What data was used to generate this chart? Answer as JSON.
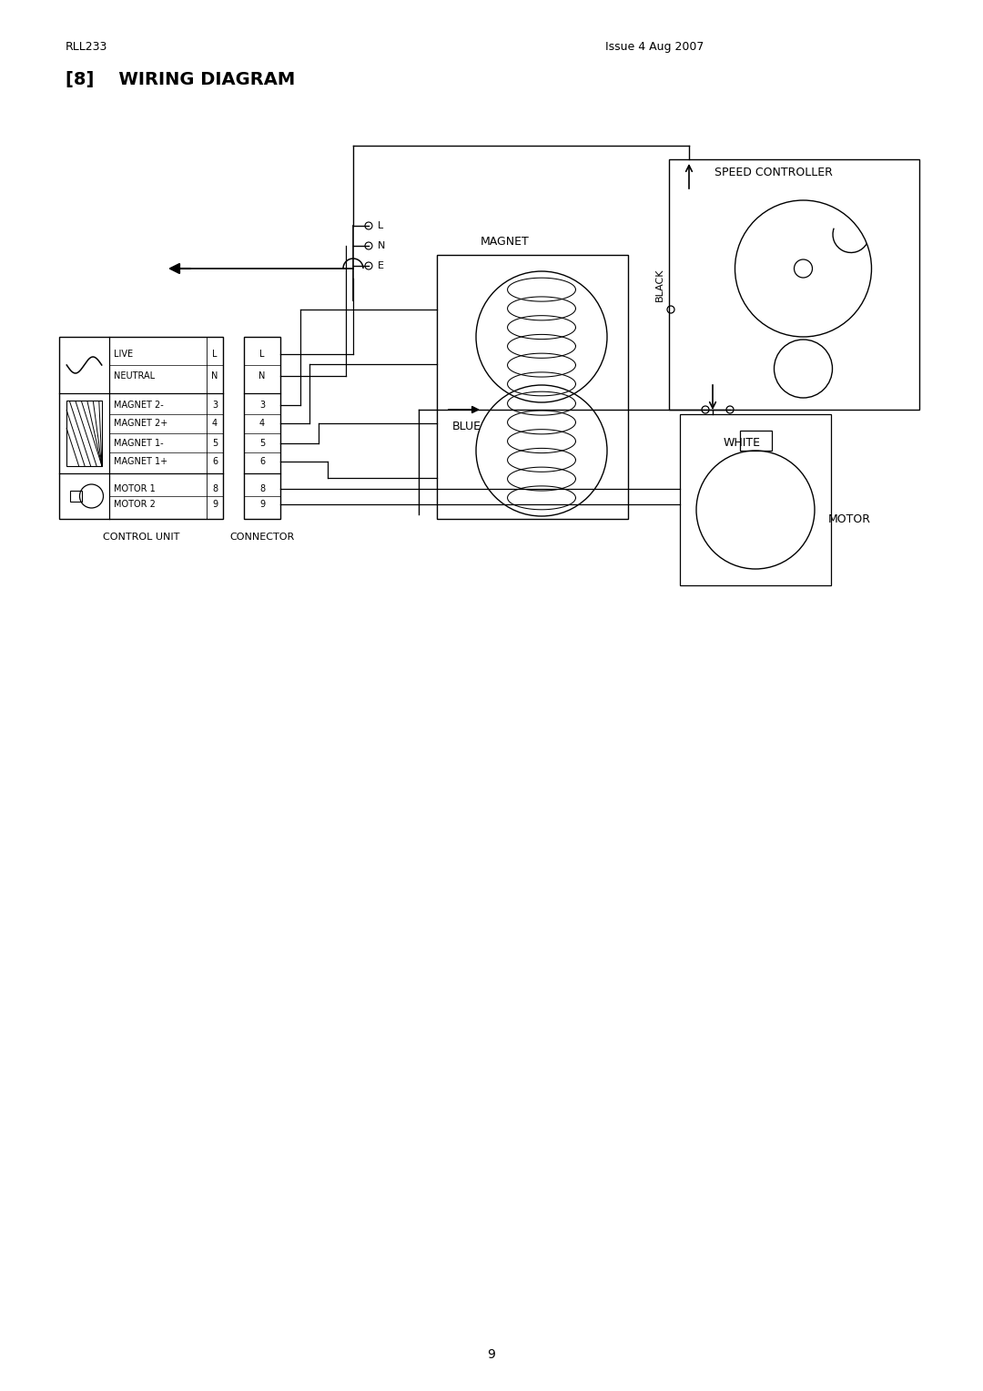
{
  "title_left": "RLL233",
  "title_right": "Issue 4 Aug 2007",
  "section_header": "[8]    WIRING DIAGRAM",
  "bg_color": "#ffffff",
  "line_color": "#000000",
  "page_number": "9",
  "control_unit_label": "CONTROL UNIT",
  "connector_label": "CONNECTOR",
  "magnet_label": "MAGNET",
  "speed_controller_label": "SPEED CONTROLLER",
  "black_label": "BLACK",
  "blue_label": "BLUE",
  "white_label": "WHITE",
  "motor_label": "MOTOR",
  "rows": [
    {
      "label": "LIVE",
      "num": "L"
    },
    {
      "label": "NEUTRAL",
      "num": "N"
    },
    {
      "label": "MAGNET 2-",
      "num": "3"
    },
    {
      "label": "MAGNET 2+",
      "num": "4"
    },
    {
      "label": "MAGNET 1-",
      "num": "5"
    },
    {
      "label": "MAGNET 1+",
      "num": "6"
    },
    {
      "label": "MOTOR 1",
      "num": "8"
    },
    {
      "label": "MOTOR 2",
      "num": "9"
    }
  ],
  "connector_rows": [
    "L",
    "N",
    "3",
    "4",
    "5",
    "6",
    "8",
    "9"
  ]
}
